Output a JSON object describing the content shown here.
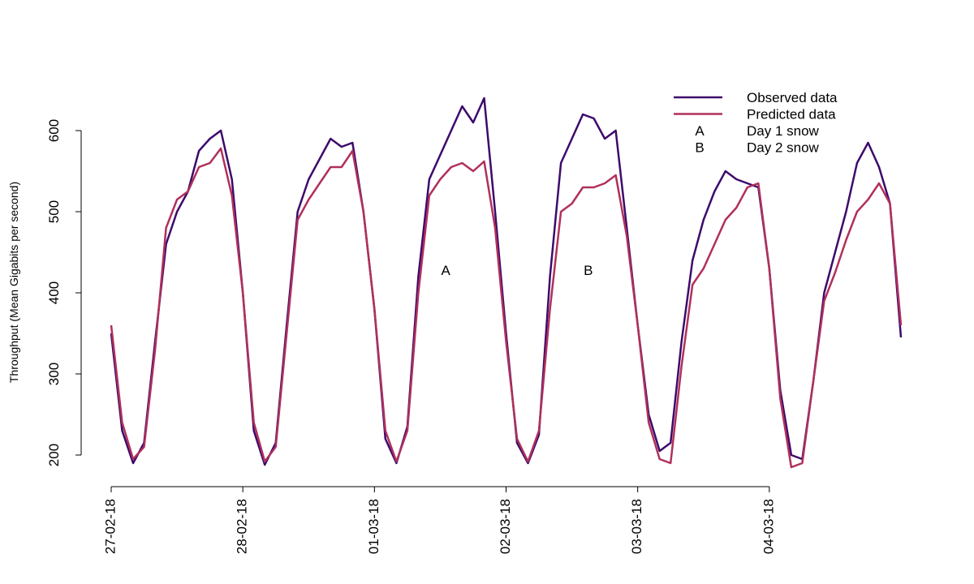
{
  "chart_data": {
    "type": "line",
    "y_label": "Throughput (Mean Gigabits per second)",
    "categories": [
      "27-02-18",
      null,
      null,
      null,
      null,
      null,
      null,
      null,
      null,
      null,
      null,
      null,
      "28-02-18",
      null,
      null,
      null,
      null,
      null,
      null,
      null,
      null,
      null,
      null,
      null,
      "01-03-18",
      null,
      null,
      null,
      null,
      null,
      null,
      null,
      null,
      null,
      null,
      null,
      "02-03-18",
      null,
      null,
      null,
      null,
      null,
      null,
      null,
      null,
      null,
      null,
      null,
      "03-03-18",
      null,
      null,
      null,
      null,
      null,
      null,
      null,
      null,
      null,
      null,
      null,
      "04-03-18",
      null,
      null,
      null,
      null,
      null,
      null,
      null,
      null,
      null,
      null,
      null,
      null
    ],
    "series": [
      {
        "name": "Observed data",
        "color": "#3d0a6b",
        "values": [
          350,
          230,
          190,
          215,
          340,
          460,
          500,
          525,
          575,
          590,
          600,
          540,
          400,
          230,
          188,
          215,
          360,
          500,
          540,
          565,
          590,
          580,
          585,
          500,
          380,
          220,
          190,
          235,
          420,
          540,
          570,
          600,
          630,
          610,
          640,
          500,
          350,
          215,
          190,
          225,
          420,
          560,
          590,
          620,
          615,
          590,
          600,
          480,
          360,
          250,
          205,
          215,
          340,
          440,
          490,
          525,
          550,
          540,
          535,
          530,
          430,
          280,
          200,
          195,
          290,
          400,
          450,
          500,
          560,
          585,
          555,
          510,
          345
        ]
      },
      {
        "name": "Predicted data",
        "color": "#b0305c",
        "values": [
          360,
          240,
          195,
          210,
          330,
          480,
          515,
          525,
          555,
          560,
          578,
          520,
          400,
          240,
          192,
          210,
          350,
          490,
          515,
          535,
          555,
          555,
          575,
          500,
          380,
          230,
          192,
          230,
          400,
          520,
          540,
          555,
          560,
          550,
          562,
          480,
          340,
          220,
          192,
          230,
          380,
          500,
          510,
          530,
          530,
          535,
          545,
          470,
          360,
          240,
          195,
          190,
          310,
          410,
          430,
          460,
          490,
          505,
          530,
          535,
          430,
          270,
          185,
          190,
          290,
          390,
          425,
          465,
          500,
          515,
          535,
          510,
          360
        ]
      }
    ],
    "legend_notes": [
      {
        "symbol": "A",
        "text": "Day 1 snow"
      },
      {
        "symbol": "B",
        "text": "Day 2 snow"
      }
    ],
    "legend": "top-right",
    "ylim": [
      165,
      655
    ],
    "yticks": [
      200,
      300,
      400,
      500,
      600
    ],
    "grid": false
  }
}
